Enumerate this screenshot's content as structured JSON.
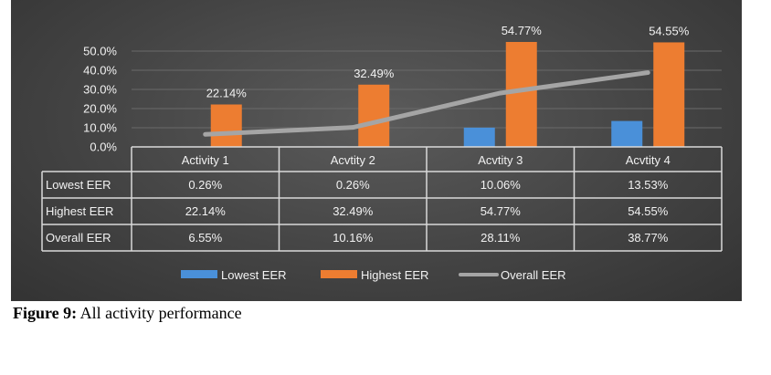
{
  "chart_data": {
    "type": "bar",
    "categories": [
      "Activity 1",
      "Acvtity 2",
      "Acvtity 3",
      "Acvtity 4"
    ],
    "series": [
      {
        "name": "Lowest EER",
        "kind": "bar",
        "color": "#4a90d9",
        "values": [
          0.26,
          0.26,
          10.06,
          13.53
        ],
        "labels": [
          "0.26%",
          "0.26%",
          "10.06%",
          "13.53%"
        ]
      },
      {
        "name": "Highest EER",
        "kind": "bar",
        "color": "#ed7d31",
        "values": [
          22.14,
          32.49,
          54.77,
          54.55
        ],
        "labels": [
          "22.14%",
          "32.49%",
          "54.77%",
          "54.55%"
        ]
      },
      {
        "name": "Overall EER",
        "kind": "line",
        "color": "#a5a5a5",
        "values": [
          6.55,
          10.16,
          28.11,
          38.77
        ],
        "labels": [
          "6.55%",
          "10.16%",
          "28.11%",
          "38.77%"
        ]
      }
    ],
    "data_labels_series": "Highest EER",
    "yticks": [
      "0.0%",
      "10.0%",
      "20.0%",
      "30.0%",
      "40.0%",
      "50.0%"
    ],
    "ylim": [
      0,
      50
    ],
    "grid": true,
    "legend_position": "bottom"
  },
  "caption": {
    "label": "Figure 9:",
    "text": " All activity performance"
  }
}
